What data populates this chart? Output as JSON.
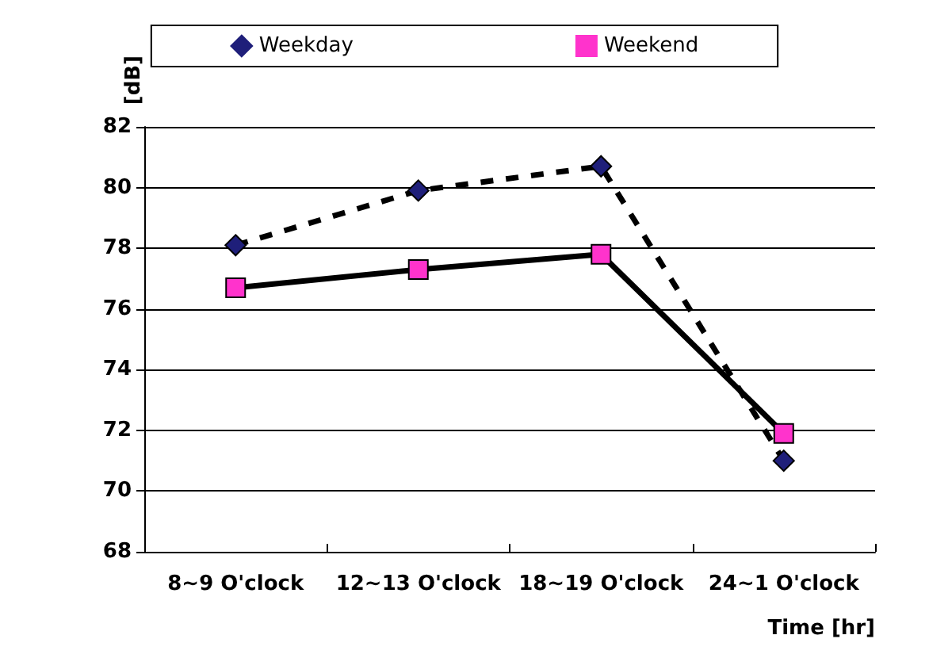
{
  "chart_data": {
    "type": "line",
    "xlabel": "Time [hr]",
    "ylabel": "[dB]",
    "categories": [
      "8~9 O'clock",
      "12~13 O'clock",
      "18~19 O'clock",
      "24~1 O'clock"
    ],
    "series": [
      {
        "name": "Weekday",
        "color": "#1f1f7a",
        "marker": "diamond",
        "line_style": "dashed",
        "values": [
          78.1,
          79.9,
          80.7,
          71.0
        ]
      },
      {
        "name": "Weekend",
        "color": "#ff33cc",
        "marker": "square",
        "line_style": "solid",
        "values": [
          76.7,
          77.3,
          77.8,
          71.9
        ]
      }
    ],
    "ylim": [
      68,
      82
    ],
    "yticks": [
      68,
      70,
      72,
      74,
      76,
      78,
      80,
      82
    ],
    "grid": "y",
    "legend": "top"
  }
}
